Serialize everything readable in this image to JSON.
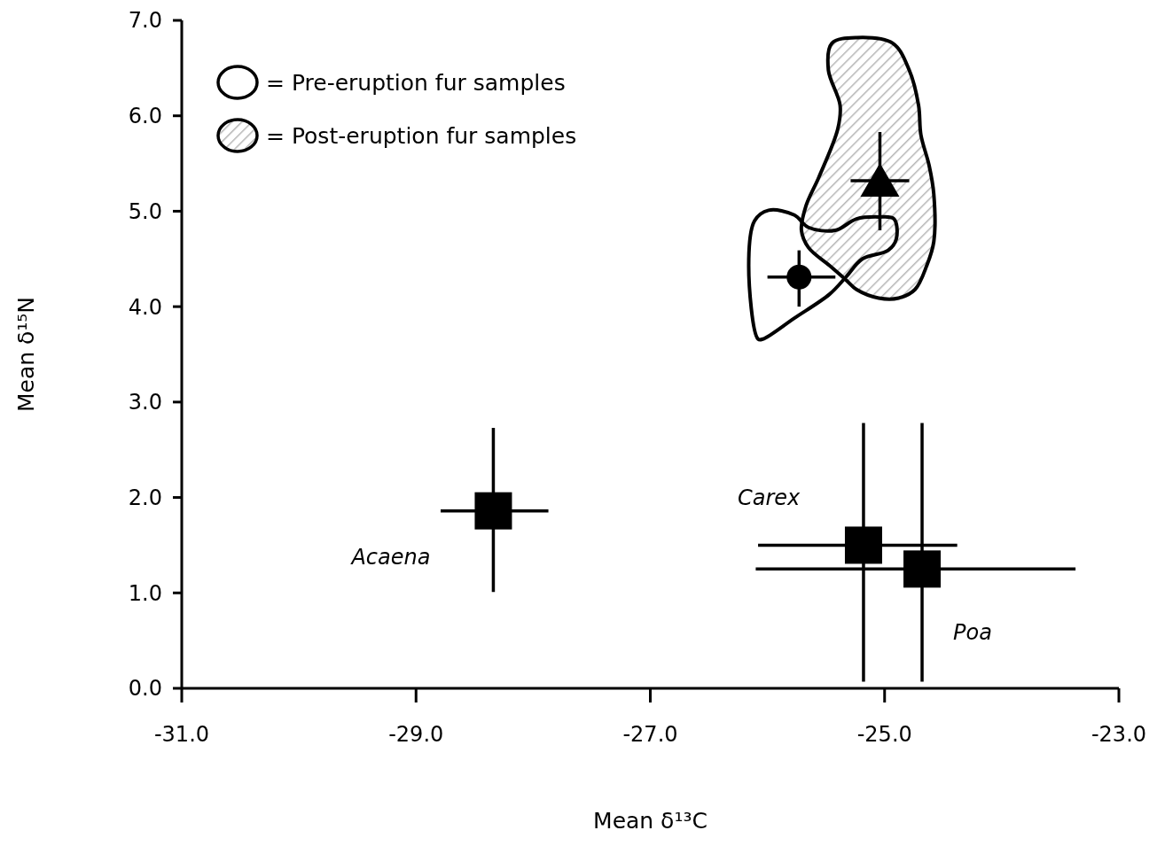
{
  "chart_data": {
    "type": "scatter",
    "xlabel": "Mean δ¹³C",
    "ylabel": "Mean δ¹⁵N",
    "xlim": [
      -31,
      -23
    ],
    "ylim": [
      0,
      7
    ],
    "xticks": [
      {
        "value": -31,
        "label": "-31.0"
      },
      {
        "value": -29,
        "label": "-29.0"
      },
      {
        "value": -27,
        "label": "-27.0"
      },
      {
        "value": -25,
        "label": "-25.0"
      },
      {
        "value": -23,
        "label": "-23.0"
      }
    ],
    "yticks": [
      {
        "value": 0,
        "label": "0.0"
      },
      {
        "value": 1,
        "label": "1.0"
      },
      {
        "value": 2,
        "label": "2.0"
      },
      {
        "value": 3,
        "label": "3.0"
      },
      {
        "value": 4,
        "label": "4.0"
      },
      {
        "value": 5,
        "label": "5.0"
      },
      {
        "value": 6,
        "label": "6.0"
      },
      {
        "value": 7,
        "label": "7.0"
      }
    ],
    "annotations": [
      "= Pre-eruption fur samples",
      "= Post-eruption fur samples"
    ],
    "series": [
      {
        "marker": "circle",
        "color": "#000000",
        "x": [
          -25.73
        ],
        "values": [
          4.31
        ],
        "errors": [
          [
            4.0,
            4.59
          ]
        ],
        "xerrors": [
          [
            -26.0,
            -25.42
          ]
        ]
      },
      {
        "marker": "triangle",
        "color": "#000000",
        "x": [
          -25.04
        ],
        "values": [
          5.32
        ],
        "errors": [
          [
            4.8,
            5.83
          ]
        ],
        "xerrors": [
          [
            -25.29,
            -24.79
          ]
        ]
      },
      {
        "name": "Acaena",
        "marker": "square",
        "color": "#000000",
        "x": [
          -28.34
        ],
        "values": [
          1.86
        ],
        "errors": [
          [
            1.01,
            2.73
          ]
        ],
        "xerrors": [
          [
            -28.79,
            -27.87
          ]
        ]
      },
      {
        "name": "Carex",
        "marker": "square",
        "color": "#000000",
        "x": [
          -25.18
        ],
        "values": [
          1.5
        ],
        "errors": [
          [
            0.07,
            2.78
          ]
        ],
        "xerrors": [
          [
            -26.08,
            -24.38
          ]
        ]
      },
      {
        "name": "Poa",
        "marker": "square",
        "color": "#000000",
        "x": [
          -24.68
        ],
        "values": [
          1.25
        ],
        "errors": [
          [
            0.07,
            2.78
          ]
        ],
        "xerrors": [
          [
            -26.1,
            -23.37
          ]
        ]
      }
    ]
  }
}
